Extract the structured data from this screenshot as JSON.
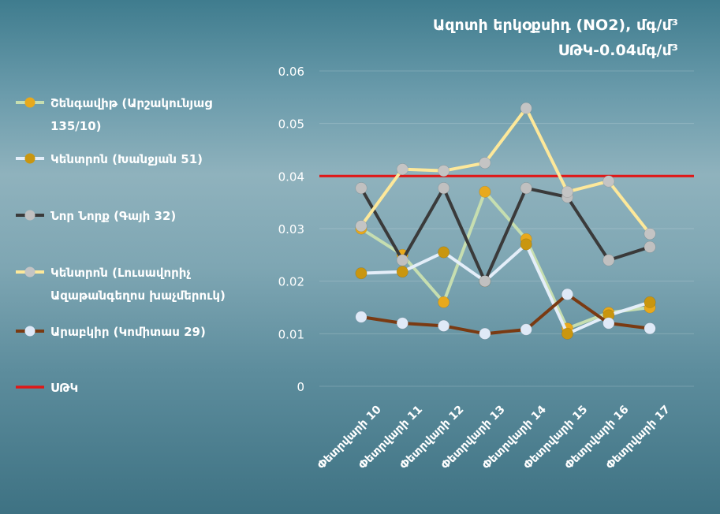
{
  "chart_data": {
    "type": "line",
    "title": "Ազոտի երկօքսիդ  (NO2), մգ/մ³",
    "subtitle": "ՍԹԿ-0.04մգ/մ³",
    "xlabel": "",
    "ylabel": "",
    "ylim": [
      0,
      0.06
    ],
    "yticks": [
      "0",
      "0.01",
      "0.02",
      "0.03",
      "0.04",
      "0.05",
      "0.06"
    ],
    "grid": true,
    "legend_position": "left",
    "categories": [
      "Փետրվարի 10",
      "Փետրվարի 11",
      "Փետրվարի 12",
      "Փետրվարի 13",
      "Փետրվարի 14",
      "Փետրվարի 15",
      "Փետրվարի 16",
      "Փետրվարի 17"
    ],
    "series": [
      {
        "name": "Շենգավիթ (Արշակունյաց 135/10)",
        "legend_lines": [
          "Շենգավիթ (Արշակունյաց",
          "135/10)"
        ],
        "line_color": "#c6deb0",
        "marker_color": "#e8a91c",
        "values": [
          0.03,
          0.025,
          0.016,
          0.037,
          0.028,
          0.011,
          0.014,
          0.015
        ]
      },
      {
        "name": "Կենտրոն (Խանջյան 51)",
        "legend_lines": [
          "Կենտրոն (Խանջյան 51)"
        ],
        "line_color": "#e4eef9",
        "marker_color": "#c9960f",
        "values": [
          0.0215,
          0.0218,
          0.0255,
          0.02,
          0.027,
          0.01,
          0.0135,
          0.016
        ]
      },
      {
        "name": "Նոր Նորք (Գայի 32)",
        "legend_lines": [
          "Նոր Նորք (Գայի 32)"
        ],
        "line_color": "#3a3a3a",
        "marker_color": "#c0c0c0",
        "values": [
          0.0377,
          0.024,
          0.0377,
          0.02,
          0.0377,
          0.036,
          0.024,
          0.0265
        ]
      },
      {
        "name": "Կենտրոն (Լուսավորիչ Ազաթանգեղոս խաչմերուկ)",
        "legend_lines": [
          "Կենտրոն (Լուսավորիչ",
          "Ազաթանգեղոս խաչմերուկ)"
        ],
        "line_color": "#fde89a",
        "marker_color": "#c4c4c4",
        "values": [
          0.0305,
          0.0413,
          0.041,
          0.0425,
          0.0529,
          0.037,
          0.039,
          0.029
        ]
      },
      {
        "name": "Արաբկիր (Կոմիտաս 29)",
        "legend_lines": [
          "Արաբկիր (Կոմիտաս 29)"
        ],
        "line_color": "#7a3a12",
        "marker_color": "#dfe9f7",
        "values": [
          0.0132,
          0.012,
          0.0115,
          0.01,
          0.0108,
          0.0175,
          0.012,
          0.011
        ]
      }
    ],
    "reference_line": {
      "name": "ՍԹԿ",
      "value": 0.04,
      "color": "#e01818"
    }
  }
}
